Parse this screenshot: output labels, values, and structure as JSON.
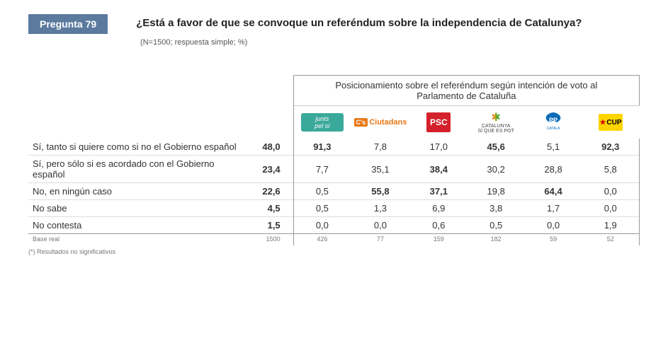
{
  "header": {
    "badge": "Pregunta 79",
    "question": "¿Está a favor de que se convoque un referéndum sobre la independencia de Catalunya?",
    "note": "(N=1500; respuesta simple; %)"
  },
  "group_title_line1": "Posicionamiento sobre el referéndum según intención de voto al",
  "group_title_line2": "Parlamento de Cataluña",
  "parties": [
    {
      "key": "junts",
      "label": "Junts pel Sí"
    },
    {
      "key": "cs",
      "label": "Ciutadans"
    },
    {
      "key": "psc",
      "label": "PSC"
    },
    {
      "key": "csp",
      "label": "CATALUNYA SÍ QUE ES POT"
    },
    {
      "key": "pp",
      "label": "PP"
    },
    {
      "key": "cup",
      "label": "CUP"
    }
  ],
  "rows": [
    {
      "label": "Sí, tanto si quiere como si no el Gobierno español",
      "total": "48,0",
      "values": [
        "91,3",
        "7,8",
        "17,0",
        "45,6",
        "5,1",
        "92,3"
      ],
      "bold": [
        true,
        false,
        false,
        true,
        false,
        true
      ]
    },
    {
      "label": "Sí, pero sólo si es acordado con el Gobierno español",
      "total": "23,4",
      "values": [
        "7,7",
        "35,1",
        "38,4",
        "30,2",
        "28,8",
        "5,8"
      ],
      "bold": [
        false,
        false,
        true,
        false,
        false,
        false
      ]
    },
    {
      "label": "No, en ningún caso",
      "total": "22,6",
      "values": [
        "0,5",
        "55,8",
        "37,1",
        "19,8",
        "64,4",
        "0,0"
      ],
      "bold": [
        false,
        true,
        true,
        false,
        true,
        false
      ]
    },
    {
      "label": "No sabe",
      "total": "4,5",
      "values": [
        "0,5",
        "1,3",
        "6,9",
        "3,8",
        "1,7",
        "0,0"
      ],
      "bold": [
        false,
        false,
        false,
        false,
        false,
        false
      ]
    },
    {
      "label": "No contesta",
      "total": "1,5",
      "values": [
        "0,0",
        "0,0",
        "0,6",
        "0,5",
        "0,0",
        "1,9"
      ],
      "bold": [
        false,
        false,
        false,
        false,
        false,
        false
      ]
    }
  ],
  "base": {
    "label": "Base real",
    "total": "1500",
    "values": [
      "426",
      "77",
      "159",
      "182",
      "59",
      "52"
    ]
  },
  "footnote": "(*) Resultados no significativos",
  "colors": {
    "badge_bg": "#5b7a9e",
    "junts": "#3aa89a",
    "ciutadans": "#e67817",
    "psc": "#d4202a",
    "cup_bg": "#ffd500",
    "pp": "#0b6bb8",
    "border": "#999999",
    "row_border": "#dddddd",
    "text": "#333333"
  }
}
